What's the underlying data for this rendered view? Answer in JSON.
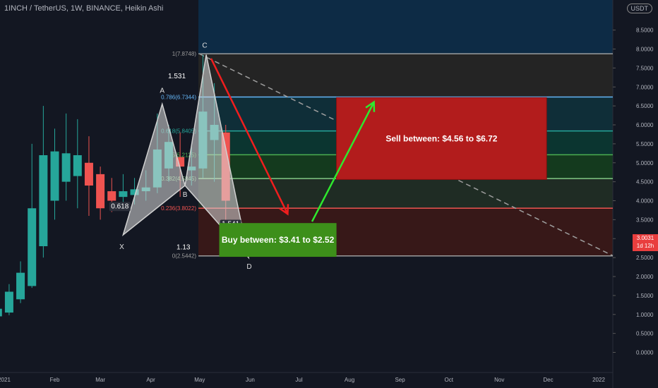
{
  "header": {
    "symbol_line": "1INCH / TetherUS, 1W, BINANCE, Heikin Ashi",
    "currency_badge": "USDT"
  },
  "price_label": {
    "value": "3.0031",
    "countdown": "1d 12h"
  },
  "colors": {
    "bg": "#131722",
    "up": "#26a69a",
    "down": "#ef5350",
    "sell_zone": "#b21c1c",
    "buy_zone": "#3d8f1a",
    "pattern": "#c8c8c8",
    "red_arrow": "#f01e1e",
    "green_arrow": "#2ee82e"
  },
  "chart_data": {
    "type": "candlestick",
    "style": "Heikin Ashi",
    "y_axis": {
      "ticks": [
        "8.5000",
        "8.0000",
        "7.5000",
        "7.0000",
        "6.5000",
        "6.0000",
        "5.5000",
        "5.0000",
        "4.5000",
        "4.0000",
        "3.5000",
        "3.0000",
        "2.5000",
        "2.0000",
        "1.5000",
        "1.0000",
        "0.5000",
        "0.0000"
      ],
      "range": [
        -0.2,
        9.0
      ]
    },
    "x_axis": {
      "ticks": [
        "2021",
        "Feb",
        "Mar",
        "Apr",
        "May",
        "Jun",
        "Jul",
        "Aug",
        "Sep",
        "Oct",
        "Nov",
        "Dec",
        "2022"
      ]
    },
    "candles": [
      {
        "date": "2020-12-28",
        "open": 0.95,
        "close": 1.15,
        "high": 1.5,
        "low": 0.88,
        "dir": "up"
      },
      {
        "date": "2021-01-04",
        "open": 1.05,
        "close": 1.6,
        "high": 1.8,
        "low": 0.98,
        "dir": "up"
      },
      {
        "date": "2021-01-11",
        "open": 1.4,
        "close": 2.1,
        "high": 2.4,
        "low": 1.3,
        "dir": "up"
      },
      {
        "date": "2021-01-18",
        "open": 1.75,
        "close": 3.8,
        "high": 5.5,
        "low": 1.7,
        "dir": "up"
      },
      {
        "date": "2021-01-25",
        "open": 2.8,
        "close": 5.2,
        "high": 6.5,
        "low": 2.5,
        "dir": "up"
      },
      {
        "date": "2021-02-01",
        "open": 4.0,
        "close": 5.3,
        "high": 5.9,
        "low": 3.5,
        "dir": "up"
      },
      {
        "date": "2021-02-08",
        "open": 4.5,
        "close": 5.25,
        "high": 6.3,
        "low": 4.0,
        "dir": "up"
      },
      {
        "date": "2021-02-15",
        "open": 4.65,
        "close": 5.2,
        "high": 6.15,
        "low": 3.8,
        "dir": "up"
      },
      {
        "date": "2021-02-22",
        "open": 5.0,
        "close": 4.4,
        "high": 5.7,
        "low": 3.6,
        "dir": "down"
      },
      {
        "date": "2021-03-01",
        "open": 4.7,
        "close": 3.8,
        "high": 4.9,
        "low": 3.5,
        "dir": "down"
      },
      {
        "date": "2021-03-08",
        "open": 4.25,
        "close": 4.0,
        "high": 4.6,
        "low": 3.7,
        "dir": "down"
      },
      {
        "date": "2021-03-15",
        "open": 4.1,
        "close": 4.25,
        "high": 4.7,
        "low": 3.8,
        "dir": "up"
      },
      {
        "date": "2021-03-22",
        "open": 4.15,
        "close": 4.3,
        "high": 4.6,
        "low": 3.9,
        "dir": "up"
      },
      {
        "date": "2021-03-29",
        "open": 4.25,
        "close": 4.35,
        "high": 4.8,
        "low": 4.0,
        "dir": "up"
      },
      {
        "date": "2021-04-05",
        "open": 4.35,
        "close": 5.35,
        "high": 6.3,
        "low": 4.2,
        "dir": "up"
      },
      {
        "date": "2021-04-12",
        "open": 4.85,
        "close": 5.55,
        "high": 6.0,
        "low": 4.5,
        "dir": "up"
      },
      {
        "date": "2021-04-19",
        "open": 5.15,
        "close": 4.9,
        "high": 5.8,
        "low": 4.1,
        "dir": "down"
      },
      {
        "date": "2021-04-26",
        "open": 4.8,
        "close": 4.9,
        "high": 5.4,
        "low": 4.4,
        "dir": "up"
      },
      {
        "date": "2021-05-03",
        "open": 4.85,
        "close": 6.35,
        "high": 7.85,
        "low": 4.6,
        "dir": "up"
      },
      {
        "date": "2021-05-10",
        "open": 5.6,
        "close": 6.0,
        "high": 7.1,
        "low": 4.5,
        "dir": "up"
      },
      {
        "date": "2021-05-17",
        "open": 5.8,
        "close": 4.0,
        "high": 6.0,
        "low": 3.1,
        "dir": "down"
      }
    ],
    "harmonic_pattern": {
      "points": [
        {
          "label": "X",
          "date": "2021-03-15",
          "price": 3.1
        },
        {
          "label": "A",
          "date": "2021-04-08",
          "price": 6.55
        },
        {
          "label": "B",
          "date": "2021-04-22",
          "price": 4.4
        },
        {
          "label": "C",
          "date": "2021-05-05",
          "price": 7.85
        },
        {
          "label": "D",
          "date": "2021-05-31",
          "price": 2.5
        }
      ],
      "ratios": [
        {
          "text": "0.618",
          "date": "2021-03-13",
          "price": 3.8
        },
        {
          "text": "1.531",
          "date": "2021-04-17",
          "price": 7.23
        },
        {
          "text": "1.541",
          "date": "2021-05-20",
          "price": 3.33
        },
        {
          "text": "1.13",
          "date": "2021-04-21",
          "price": 2.72
        }
      ]
    },
    "fib_levels": [
      {
        "text": "1(7.8748)",
        "price": 7.8748,
        "color": "#9c9c9c"
      },
      {
        "text": "0.786(6.7344)",
        "price": 6.7344,
        "color": "#64b5f6"
      },
      {
        "text": "0.618(5.8405)",
        "price": 5.8405,
        "color": "#26a69a"
      },
      {
        "text": "0.5(5.2125)",
        "price": 5.2125,
        "color": "#4caf50"
      },
      {
        "text": "0.382(4.5845)",
        "price": 4.5845,
        "color": "#81c784"
      },
      {
        "text": "0.236(3.8022)",
        "price": 3.8022,
        "color": "#ef5350"
      },
      {
        "text": "0(2.5442)",
        "price": 2.5442,
        "color": "#9c9c9c"
      }
    ],
    "annotations": {
      "sell_text": "Sell between: $4.56 to $6.72",
      "buy_text": "Buy between: $3.41 to $2.52",
      "sell_zone": {
        "from": "2021-07-24",
        "to": "2021-11-30",
        "low": 4.56,
        "high": 6.72
      },
      "buy_zone": {
        "from": "2021-05-13",
        "to": "2021-07-24",
        "low": 2.52,
        "high": 3.41
      }
    }
  }
}
